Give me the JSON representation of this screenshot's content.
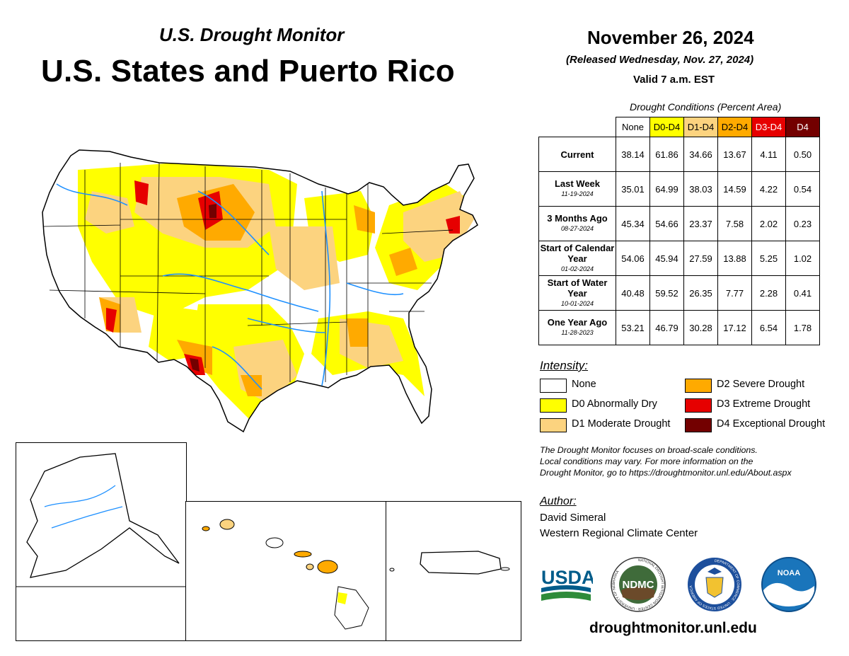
{
  "header": {
    "subtitle": "U.S. Drought Monitor",
    "title": "U.S. States and Puerto Rico",
    "date": "November 26, 2024",
    "released": "(Released Wednesday, Nov. 27, 2024)",
    "valid": "Valid 7 a.m. EST"
  },
  "conditions": {
    "caption": "Drought Conditions (Percent Area)",
    "columns": [
      "None",
      "D0-D4",
      "D1-D4",
      "D2-D4",
      "D3-D4",
      "D4"
    ],
    "column_colors": [
      "#ffffff",
      "#ffff00",
      "#fcd37f",
      "#ffaa00",
      "#e60000",
      "#730000"
    ],
    "column_text_colors": [
      "#000000",
      "#000000",
      "#000000",
      "#000000",
      "#ffffff",
      "#ffffff"
    ],
    "rows": [
      {
        "label": "Current",
        "date": "",
        "values": [
          "38.14",
          "61.86",
          "34.66",
          "13.67",
          "4.11",
          "0.50"
        ]
      },
      {
        "label": "Last Week",
        "date": "11-19-2024",
        "values": [
          "35.01",
          "64.99",
          "38.03",
          "14.59",
          "4.22",
          "0.54"
        ]
      },
      {
        "label": "3 Months Ago",
        "date": "08-27-2024",
        "values": [
          "45.34",
          "54.66",
          "23.37",
          "7.58",
          "2.02",
          "0.23"
        ]
      },
      {
        "label": "Start of Calendar Year",
        "date": "01-02-2024",
        "values": [
          "54.06",
          "45.94",
          "27.59",
          "13.88",
          "5.25",
          "1.02"
        ]
      },
      {
        "label": "Start of Water Year",
        "date": "10-01-2024",
        "values": [
          "40.48",
          "59.52",
          "26.35",
          "7.77",
          "2.28",
          "0.41"
        ]
      },
      {
        "label": "One Year Ago",
        "date": "11-28-2023",
        "values": [
          "53.21",
          "46.79",
          "30.28",
          "17.12",
          "6.54",
          "1.78"
        ]
      }
    ]
  },
  "legend": {
    "title": "Intensity:",
    "items": [
      {
        "label": "None",
        "color": "#ffffff"
      },
      {
        "label": "D0 Abnormally Dry",
        "color": "#ffff00"
      },
      {
        "label": "D1 Moderate Drought",
        "color": "#fcd37f"
      },
      {
        "label": "D2 Severe Drought",
        "color": "#ffaa00"
      },
      {
        "label": "D3 Extreme Drought",
        "color": "#e60000"
      },
      {
        "label": "D4 Exceptional Drought",
        "color": "#730000"
      }
    ]
  },
  "note": [
    "The Drought Monitor focuses on broad-scale conditions.",
    "Local conditions may vary. For more information on the",
    "Drought Monitor, go to https://droughtmonitor.unl.edu/About.aspx"
  ],
  "author": {
    "title": "Author:",
    "name": "David Simeral",
    "org": "Western Regional Climate Center"
  },
  "logos": {
    "usda": "USDA",
    "ndmc": "NDMC",
    "noaa": "NOAA",
    "ndmc_ring": "NATIONAL DROUGHT MITIGATION CENTER · UNIVERSITY OF NEBRASKA",
    "commerce_ring": "DEPARTMENT OF COMMERCE · UNITED STATES OF AMERICA"
  },
  "site": "droughtmonitor.unl.edu"
}
